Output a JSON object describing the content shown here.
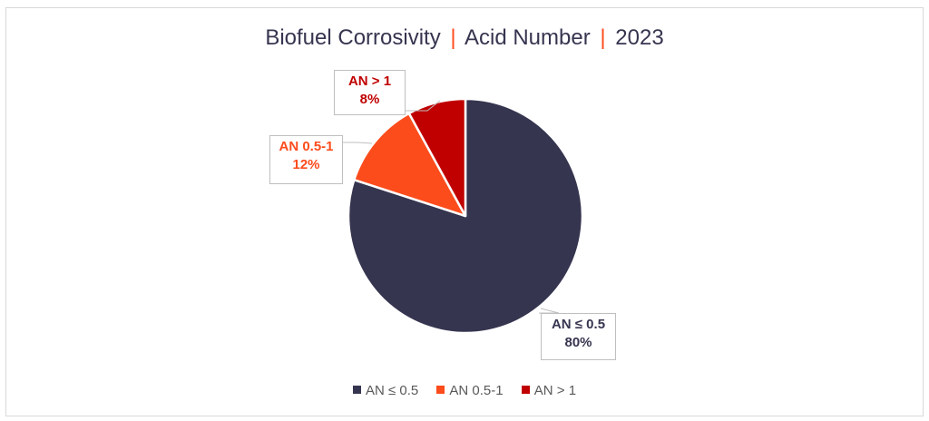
{
  "chart_data": {
    "type": "pie",
    "title": "Biofuel Corrosivity | Acid Number | 2023",
    "title_parts": [
      "Biofuel Corrosivity",
      "Acid Number",
      "2023"
    ],
    "categories": [
      "AN ≤ 0.5",
      "AN 0.5-1",
      "AN > 1"
    ],
    "values": [
      80,
      12,
      8
    ],
    "unit": "%",
    "colors": [
      "#363550",
      "#fc4c1c",
      "#c00000"
    ],
    "data_labels": [
      {
        "category": "AN ≤ 0.5",
        "value": "80%"
      },
      {
        "category": "AN 0.5-1",
        "value": "12%"
      },
      {
        "category": "AN > 1",
        "value": "8%"
      }
    ],
    "legend_position": "bottom",
    "start_angle_deg": 0,
    "direction": "clockwise"
  },
  "title": {
    "part1": "Biofuel Corrosivity",
    "sep": "|",
    "part2": "Acid Number",
    "part3": "2023"
  },
  "labels": {
    "an_low": {
      "name": "AN ≤ 0.5",
      "value": "80%"
    },
    "an_mid": {
      "name": "AN 0.5-1",
      "value": "12%"
    },
    "an_high": {
      "name": "AN > 1",
      "value": "8%"
    }
  },
  "legend": [
    {
      "label": "AN ≤ 0.5",
      "color": "#363550"
    },
    {
      "label": "AN 0.5-1",
      "color": "#fc4c1c"
    },
    {
      "label": "AN > 1",
      "color": "#c00000"
    }
  ]
}
